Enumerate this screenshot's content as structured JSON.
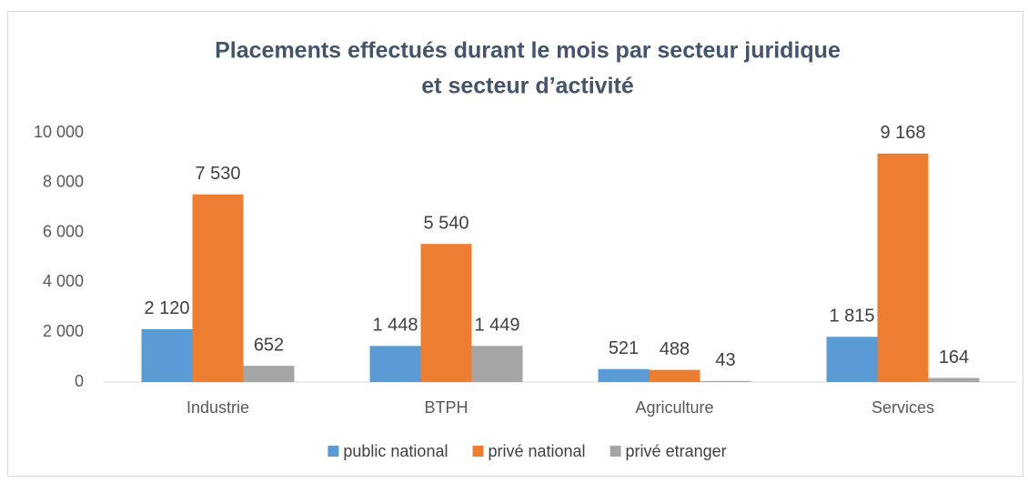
{
  "chart_data": {
    "type": "bar",
    "title": [
      "Placements effectués durant le mois par secteur juridique",
      "et secteur d’activité"
    ],
    "categories": [
      "Industrie",
      "BTPH",
      "Agriculture",
      "Services"
    ],
    "series": [
      {
        "name": "public national",
        "color": "#5b9bd5",
        "values": [
          2120,
          1448,
          521,
          1815
        ],
        "value_labels": [
          "2 120",
          "1 448",
          "521",
          "1 815"
        ]
      },
      {
        "name": "privé national",
        "color": "#ed7d31",
        "values": [
          7530,
          5540,
          488,
          9168
        ],
        "value_labels": [
          "7 530",
          "5 540",
          "488",
          "9 168"
        ]
      },
      {
        "name": "privé etranger",
        "color": "#a5a5a5",
        "values": [
          652,
          1449,
          43,
          164
        ],
        "value_labels": [
          "652",
          "1 449",
          "43",
          "164"
        ]
      }
    ],
    "ylim": [
      0,
      10000
    ],
    "yticks": [
      0,
      {
        "value": 2000,
        "label": "2 000"
      },
      {
        "value": 4000,
        "label": "4 000"
      },
      {
        "value": 6000,
        "label": "6 000"
      },
      {
        "value": 8000,
        "label": "8 000"
      },
      {
        "value": 10000,
        "label": "10 000"
      }
    ],
    "grid": false,
    "legend": "bottom"
  }
}
